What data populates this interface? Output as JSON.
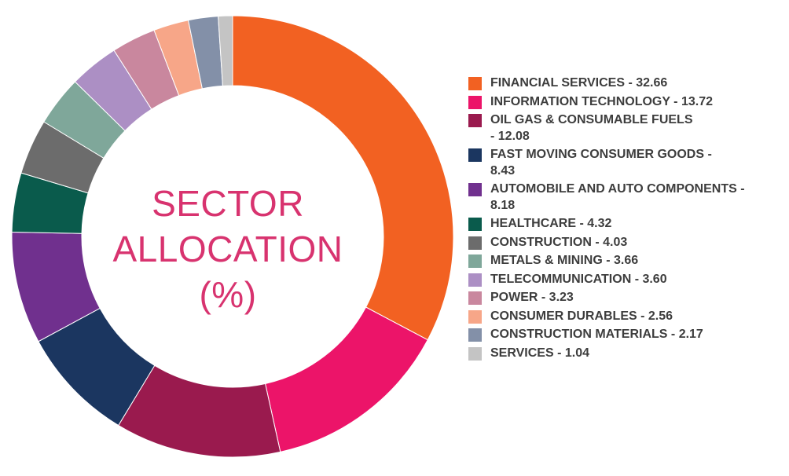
{
  "center_title": [
    "SECTOR",
    "ALLOCATION",
    "(%)"
  ],
  "chart_data": {
    "type": "pie",
    "donut": true,
    "title": "SECTOR ALLOCATION (%)",
    "legend_position": "right",
    "categories": [
      "FINANCIAL SERVICES",
      "INFORMATION TECHNOLOGY",
      "OIL GAS & CONSUMABLE FUELS",
      "FAST MOVING CONSUMER GOODS",
      "AUTOMOBILE AND AUTO COMPONENTS",
      "HEALTHCARE",
      "CONSTRUCTION",
      "METALS & MINING",
      "TELECOMMUNICATION",
      "POWER",
      "CONSUMER DURABLES",
      "CONSTRUCTION MATERIALS",
      "SERVICES"
    ],
    "values": [
      32.66,
      13.72,
      12.08,
      8.43,
      8.18,
      4.32,
      4.03,
      3.66,
      3.6,
      3.23,
      2.56,
      2.17,
      1.04
    ],
    "colors": [
      "#f26122",
      "#ec1469",
      "#9a1a4e",
      "#1b3660",
      "#70308e",
      "#0a5b4c",
      "#6c6c6c",
      "#7fa79a",
      "#ac8fc4",
      "#c9879e",
      "#f7a688",
      "#8390a8",
      "#c4c4c4"
    ]
  },
  "legend": [
    {
      "lines": [
        "FINANCIAL SERVICES - 32.66"
      ]
    },
    {
      "lines": [
        "INFORMATION TECHNOLOGY - 13.72"
      ]
    },
    {
      "lines": [
        "OIL GAS & CONSUMABLE FUELS",
        "- 12.08"
      ]
    },
    {
      "lines": [
        "FAST MOVING CONSUMER GOODS -",
        "8.43"
      ]
    },
    {
      "lines": [
        "AUTOMOBILE AND AUTO COMPONENTS -",
        "8.18"
      ]
    },
    {
      "lines": [
        "HEALTHCARE - 4.32"
      ]
    },
    {
      "lines": [
        "CONSTRUCTION - 4.03"
      ]
    },
    {
      "lines": [
        "METALS & MINING - 3.66"
      ]
    },
    {
      "lines": [
        "TELECOMMUNICATION - 3.60"
      ]
    },
    {
      "lines": [
        "POWER - 3.23"
      ]
    },
    {
      "lines": [
        "CONSUMER DURABLES - 2.56"
      ]
    },
    {
      "lines": [
        "CONSTRUCTION MATERIALS - 2.17"
      ]
    },
    {
      "lines": [
        "SERVICES - 1.04"
      ]
    }
  ]
}
